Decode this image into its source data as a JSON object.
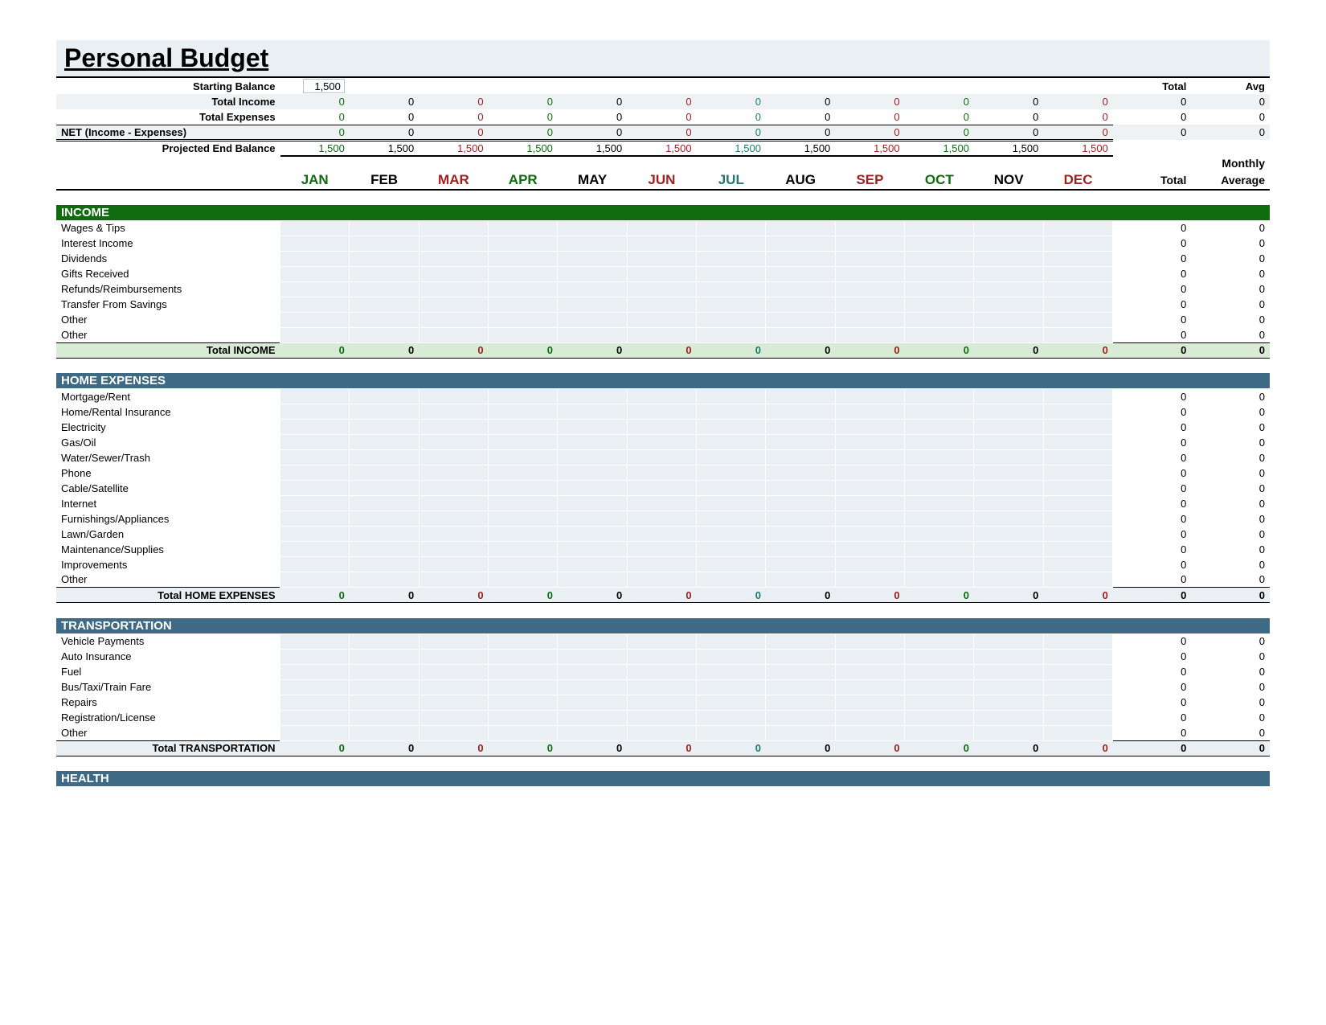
{
  "title": "Personal Budget",
  "months": [
    "JAN",
    "FEB",
    "MAR",
    "APR",
    "MAY",
    "JUN",
    "JUL",
    "AUG",
    "SEP",
    "OCT",
    "NOV",
    "DEC"
  ],
  "month_colors": [
    "#0e6b0e",
    "#000000",
    "#a12020",
    "#0e6b0e",
    "#000000",
    "#a12020",
    "#1f7a6b",
    "#000000",
    "#a12020",
    "#0e6b0e",
    "#000000",
    "#a12020"
  ],
  "header_labels": {
    "starting_balance": "Starting Balance",
    "total_income": "Total Income",
    "total_expenses": "Total Expenses",
    "net": "NET (Income - Expenses)",
    "projected_end": "Projected End Balance",
    "total": "Total",
    "avg": "Avg",
    "monthly": "Monthly",
    "total_average_1": "Total",
    "total_average_2": "Average"
  },
  "summary": {
    "starting_balance": "1,500",
    "total_income": {
      "months": [
        "0",
        "0",
        "0",
        "0",
        "0",
        "0",
        "0",
        "0",
        "0",
        "0",
        "0",
        "0"
      ],
      "total": "0",
      "avg": "0"
    },
    "total_expenses": {
      "months": [
        "0",
        "0",
        "0",
        "0",
        "0",
        "0",
        "0",
        "0",
        "0",
        "0",
        "0",
        "0"
      ],
      "total": "0",
      "avg": "0"
    },
    "net": {
      "months": [
        "0",
        "0",
        "0",
        "0",
        "0",
        "0",
        "0",
        "0",
        "0",
        "0",
        "0",
        "0"
      ],
      "total": "0",
      "avg": "0"
    },
    "projected_end": {
      "months": [
        "1,500",
        "1,500",
        "1,500",
        "1,500",
        "1,500",
        "1,500",
        "1,500",
        "1,500",
        "1,500",
        "1,500",
        "1,500",
        "1,500"
      ]
    }
  },
  "sections": [
    {
      "id": "income",
      "title": "INCOME",
      "header_class": "section-income",
      "subtotal_class": "income",
      "items": [
        "Wages & Tips",
        "Interest Income",
        "Dividends",
        "Gifts Received",
        "Refunds/Reimbursements",
        "Transfer From Savings",
        "Other",
        "Other"
      ],
      "subtotal_label": "Total INCOME",
      "item_total": "0",
      "item_avg": "0",
      "subtotal_months": [
        "0",
        "0",
        "0",
        "0",
        "0",
        "0",
        "0",
        "0",
        "0",
        "0",
        "0",
        "0"
      ],
      "subtotal_total": "0",
      "subtotal_avg": "0"
    },
    {
      "id": "home",
      "title": "HOME EXPENSES",
      "header_class": "section-blue",
      "subtotal_class": "",
      "items": [
        "Mortgage/Rent",
        "Home/Rental Insurance",
        "Electricity",
        "Gas/Oil",
        "Water/Sewer/Trash",
        "Phone",
        "Cable/Satellite",
        "Internet",
        "Furnishings/Appliances",
        "Lawn/Garden",
        "Maintenance/Supplies",
        "Improvements",
        "Other"
      ],
      "subtotal_label": "Total HOME EXPENSES",
      "item_total": "0",
      "item_avg": "0",
      "subtotal_months": [
        "0",
        "0",
        "0",
        "0",
        "0",
        "0",
        "0",
        "0",
        "0",
        "0",
        "0",
        "0"
      ],
      "subtotal_total": "0",
      "subtotal_avg": "0"
    },
    {
      "id": "transport",
      "title": "TRANSPORTATION",
      "header_class": "section-blue",
      "subtotal_class": "",
      "items": [
        "Vehicle Payments",
        "Auto Insurance",
        "Fuel",
        "Bus/Taxi/Train Fare",
        "Repairs",
        "Registration/License",
        "Other"
      ],
      "subtotal_label": "Total TRANSPORTATION",
      "item_total": "0",
      "item_avg": "0",
      "subtotal_months": [
        "0",
        "0",
        "0",
        "0",
        "0",
        "0",
        "0",
        "0",
        "0",
        "0",
        "0",
        "0"
      ],
      "subtotal_total": "0",
      "subtotal_avg": "0"
    },
    {
      "id": "health",
      "title": "HEALTH",
      "header_class": "section-blue",
      "subtotal_class": "",
      "items": [],
      "subtotal_label": "",
      "item_total": "",
      "item_avg": "",
      "subtotal_months": [],
      "subtotal_total": "",
      "subtotal_avg": ""
    }
  ],
  "colors": {
    "title_bg": "#e9eff3",
    "stripe": "#eef2f5",
    "cell_bg": "#e9eff3",
    "income_header": "#0e6b0e",
    "blue_header": "#3e6a85",
    "income_subtotal_bg": "#d8ecd5"
  }
}
